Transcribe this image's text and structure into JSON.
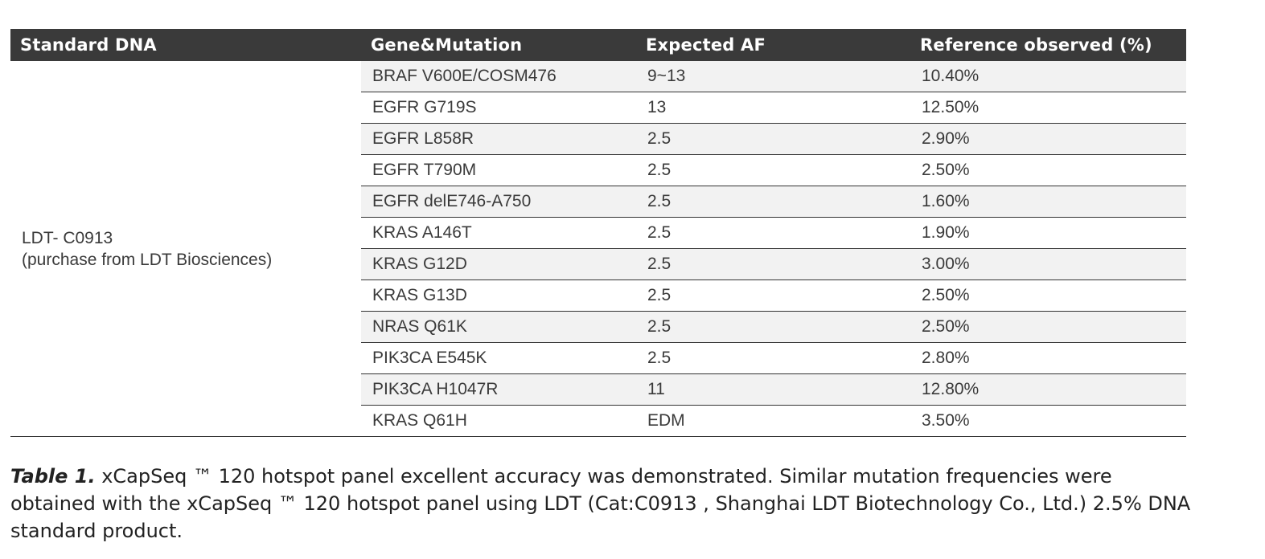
{
  "table": {
    "headers": [
      "Standard  DNA",
      "Gene&Mutation",
      "Expected  AF",
      "Reference  observed (%)"
    ],
    "standard": {
      "line1": "LDT- C0913",
      "line2": "(purchase from LDT Biosciences)"
    },
    "rows": [
      {
        "gene": "BRAF V600E/COSM476",
        "af": "9~13",
        "observed": "10.40%"
      },
      {
        "gene": "EGFR G719S",
        "af": "13",
        "observed": "12.50%"
      },
      {
        "gene": "EGFR L858R",
        "af": "2.5",
        "observed": "2.90%"
      },
      {
        "gene": "EGFR T790M",
        "af": "2.5",
        "observed": "2.50%"
      },
      {
        "gene": "EGFR delE746-A750",
        "af": "2.5",
        "observed": "1.60%"
      },
      {
        "gene": "KRAS A146T",
        "af": "2.5",
        "observed": "1.90%"
      },
      {
        "gene": "KRAS G12D",
        "af": "2.5",
        "observed": "3.00%"
      },
      {
        "gene": "KRAS G13D",
        "af": "2.5",
        "observed": "2.50%"
      },
      {
        "gene": "NRAS Q61K",
        "af": "2.5",
        "observed": "2.50%"
      },
      {
        "gene": "PIK3CA E545K",
        "af": "2.5",
        "observed": "2.80%"
      },
      {
        "gene": "PIK3CA H1047R",
        "af": "11",
        "observed": "12.80%"
      },
      {
        "gene": "KRAS Q61H",
        "af": "EDM",
        "observed": "3.50%"
      }
    ]
  },
  "caption": {
    "label": "Table 1.",
    "text": " xCapSeq ™ 120 hotspot panel excellent accuracy was demonstrated. Similar mutation frequencies were obtained with the xCapSeq ™ 120 hotspot panel using LDT (Cat:C0913 , Shanghai LDT Biotechnology Co., Ltd.) 2.5% DNA standard product."
  }
}
